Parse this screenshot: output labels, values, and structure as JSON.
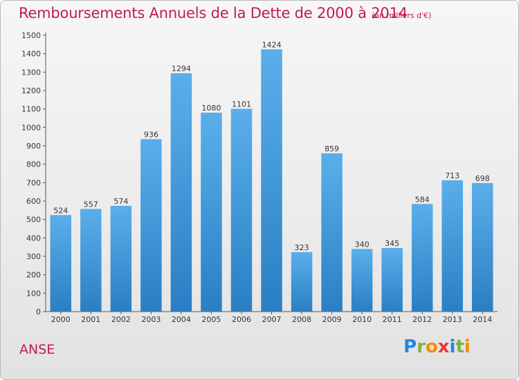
{
  "header": {
    "title": "Remboursements Annuels de la Dette de 2000 à 2014",
    "unit": "(en milliers d'€)"
  },
  "commune": "ANSE",
  "logo": {
    "letters": [
      "P",
      "r",
      "o",
      "x",
      "i",
      "t",
      "i"
    ],
    "colors": [
      "#1e88e5",
      "#7cb342",
      "#fb8c00",
      "#e53935",
      "#1e88e5",
      "#7cb342",
      "#fb8c00"
    ]
  },
  "chart_data": {
    "type": "bar",
    "categories": [
      "2000",
      "2001",
      "2002",
      "2003",
      "2004",
      "2005",
      "2006",
      "2007",
      "2008",
      "2009",
      "2010",
      "2011",
      "2012",
      "2013",
      "2014"
    ],
    "values": [
      524,
      557,
      574,
      936,
      1294,
      1080,
      1101,
      1424,
      323,
      859,
      340,
      345,
      584,
      713,
      698
    ],
    "ylim": [
      0,
      1500
    ],
    "yticks": [
      0,
      100,
      200,
      300,
      400,
      500,
      600,
      700,
      800,
      900,
      1000,
      1100,
      1200,
      1300,
      1400,
      1500
    ],
    "grid": false,
    "bar_color_light": "#5aafea",
    "bar_color_dark": "#2a7fc4"
  }
}
